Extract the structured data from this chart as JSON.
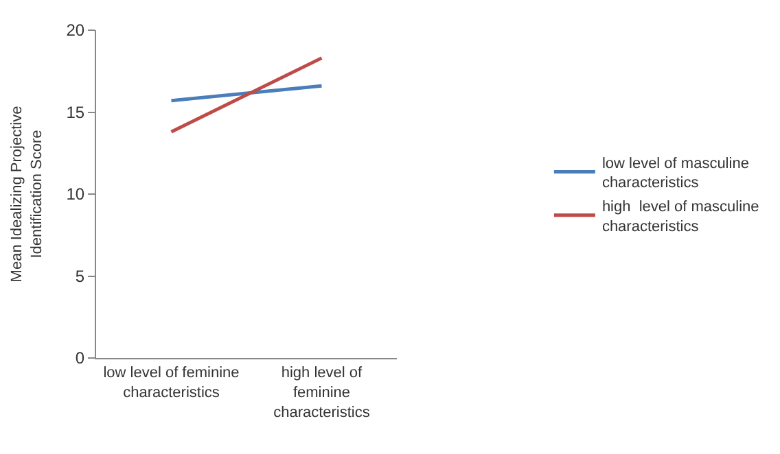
{
  "chart_data": {
    "type": "line",
    "ylabel": "Mean Idealizing Projective Identification Score",
    "categories": [
      "low level of feminine characteristics",
      "high level of feminine characteristics"
    ],
    "series": [
      {
        "name": "low level of masculine characteristics",
        "color": "#4a7ebb",
        "values": [
          15.7,
          16.6
        ]
      },
      {
        "name": "high  level of masculine characteristics",
        "color": "#be4b48",
        "values": [
          13.8,
          18.3
        ]
      }
    ],
    "ylim": [
      0,
      20
    ],
    "yticks": [
      0,
      5,
      10,
      15,
      20
    ],
    "grid": false,
    "legend": "right",
    "marker": "none",
    "line_style": "solid"
  }
}
